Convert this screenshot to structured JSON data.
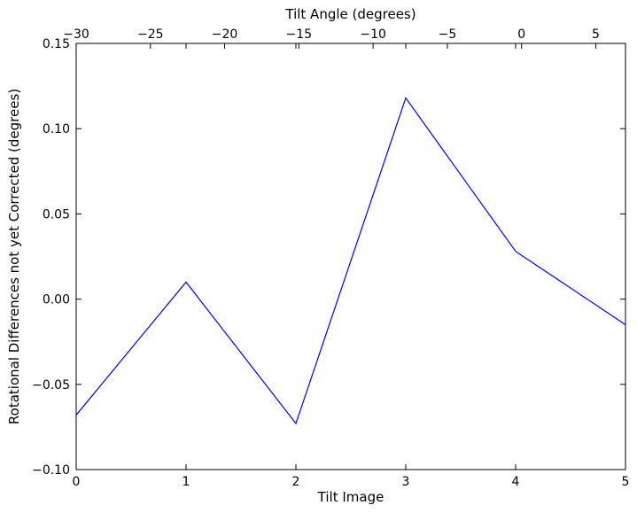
{
  "chart_data": {
    "type": "line",
    "title": "",
    "xlabel": "Tilt Image",
    "ylabel": "Rotational Differences not yet Corrected (degrees)",
    "top_xlabel": "Tilt Angle (degrees)",
    "xlim": [
      0,
      5
    ],
    "ylim": [
      -0.1,
      0.15
    ],
    "top_xlim": [
      -30,
      7
    ],
    "grid": false,
    "legend": "none",
    "x": [
      0,
      1,
      2,
      3,
      4,
      5
    ],
    "series": [
      {
        "values": [
          -0.068,
          0.01,
          -0.073,
          0.118,
          0.028,
          -0.015
        ],
        "color": "#0000ff"
      }
    ],
    "xticks": [
      0,
      1,
      2,
      3,
      4,
      5
    ],
    "xtick_labels": [
      "0",
      "1",
      "2",
      "3",
      "4",
      "5"
    ],
    "yticks": [
      -0.1,
      -0.05,
      0.0,
      0.05,
      0.1,
      0.15
    ],
    "ytick_labels": [
      "−0.10",
      "−0.05",
      "0.00",
      "0.05",
      "0.10",
      "0.15"
    ],
    "top_xticks": [
      -30,
      -25,
      -20,
      -15,
      -10,
      -5,
      0,
      5
    ],
    "top_xtick_labels": [
      "−30",
      "−25",
      "−20",
      "−15",
      "−10",
      "−5",
      "0",
      "5"
    ]
  }
}
